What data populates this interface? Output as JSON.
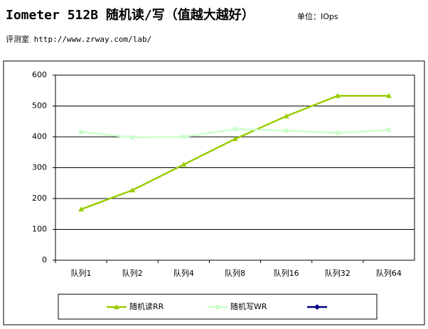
{
  "header": {
    "title": "Iometer 512B 随机读/写（值越大越好）",
    "unit": "单位：IOps",
    "source": "评测室 http://www.zrway.com/lab/"
  },
  "chart_data": {
    "type": "line",
    "categories": [
      "队列1",
      "队列2",
      "队列4",
      "队列8",
      "队列16",
      "队列32",
      "队列64"
    ],
    "series": [
      {
        "name": "随机读RR",
        "color": "#99cc00",
        "marker": "triangle",
        "values": [
          165,
          227,
          310,
          393,
          467,
          533,
          533
        ]
      },
      {
        "name": "随机写WR",
        "color": "#ccffcc",
        "marker": "square",
        "values": [
          416,
          398,
          400,
          425,
          420,
          413,
          422
        ]
      },
      {
        "color": "#000080",
        "marker": "diamond",
        "values": [
          null,
          null,
          null,
          null,
          null,
          null,
          null
        ]
      }
    ],
    "ylim": [
      0,
      600
    ],
    "yticks": [
      0,
      100,
      200,
      300,
      400,
      500,
      600
    ],
    "grid": true,
    "legend": "bottom"
  }
}
